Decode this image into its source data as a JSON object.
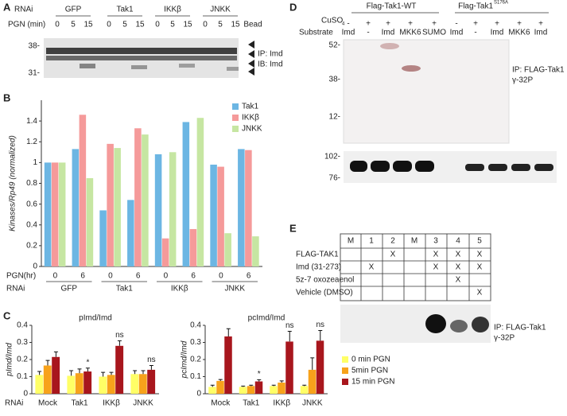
{
  "panel_labels": [
    "A",
    "B",
    "C",
    "D",
    "E"
  ],
  "panel_a": {
    "rnai_label": "RNAi",
    "groups": [
      "GFP",
      "Tak1",
      "IKKβ",
      "JNKK"
    ],
    "pgn_label": "PGN (min)",
    "times": [
      "0",
      "5",
      "15",
      "0",
      "5",
      "15",
      "0",
      "5",
      "15",
      "0",
      "5",
      "15"
    ],
    "bead": "Bead",
    "markers": [
      "38-",
      "31-"
    ],
    "ip": "IP: Imd",
    "ib": "IB: Imd"
  },
  "panel_d": {
    "groups": [
      "Flag-Tak1-WT",
      "Flag-Tak1"
    ],
    "mutation": "S176A",
    "cuso4_label": "CuSO",
    "cuso4_sub": "4",
    "cuso4": [
      "-",
      "+",
      "+",
      "+",
      "+",
      "-",
      "+",
      "+",
      "+",
      "+"
    ],
    "substrate_label": "Substrate",
    "substrates": [
      "Imd",
      "-",
      "Imd",
      "MKK6",
      "SUMO",
      "Imd",
      "-",
      "Imd",
      "MKK6",
      "Imd"
    ],
    "markers_top": [
      "52-",
      "38-",
      "12-"
    ],
    "markers_bottom": [
      "102-",
      "76-"
    ],
    "ip": "IP: FLAG-Tak1",
    "label": "γ-32P"
  },
  "panel_e": {
    "columns": [
      "M",
      "1",
      "2",
      "M",
      "3",
      "4",
      "5"
    ],
    "rows": [
      {
        "label": "FLAG-TAK1",
        "cells": [
          null,
          null,
          "X",
          null,
          "X",
          "X",
          "X"
        ]
      },
      {
        "label": "Imd (31-273)",
        "cells": [
          null,
          "X",
          null,
          null,
          "X",
          "X",
          "X"
        ]
      },
      {
        "label": "5z-7 oxozeaenol",
        "cells": [
          null,
          null,
          null,
          null,
          null,
          "X",
          null
        ]
      },
      {
        "label": "Vehicle (DMSO)",
        "cells": [
          null,
          null,
          null,
          null,
          null,
          null,
          "X"
        ]
      }
    ],
    "ip": "IP: FLAG-Tak1",
    "label": "γ-32P"
  },
  "chart_data": [
    {
      "type": "bar",
      "ylabel": "Kinases/Rp49 (normalized)",
      "x_label": "PGN(hr)",
      "group_label": "RNAi",
      "categories": [
        "0",
        "6",
        "0",
        "6",
        "0",
        "6",
        "0",
        "6"
      ],
      "groups": [
        "GFP",
        "Tak1",
        "IKKβ",
        "JNKK"
      ],
      "series": [
        {
          "name": "Tak1",
          "color": "#6cb6e3",
          "values": [
            1.0,
            1.13,
            0.54,
            0.64,
            1.08,
            1.39,
            0.98,
            1.13
          ]
        },
        {
          "name": "IKKβ",
          "color": "#f59a9a",
          "values": [
            1.0,
            1.46,
            1.18,
            1.33,
            0.27,
            0.36,
            0.96,
            1.12
          ]
        },
        {
          "name": "JNKK",
          "color": "#c6e6a2",
          "values": [
            1.0,
            0.85,
            1.14,
            1.27,
            1.1,
            1.43,
            0.32,
            0.29
          ]
        }
      ],
      "ylim": [
        0,
        1.6
      ],
      "yticks": [
        0,
        0.2,
        0.4,
        0.6,
        0.8,
        1,
        1.2,
        1.4
      ],
      "legend": "top-right"
    },
    {
      "type": "bar",
      "title": "pImd/Imd",
      "ylabel": "pImd/Imd",
      "group_label": "RNAi",
      "categories": [
        "Mock",
        "Tak1",
        "IKKβ",
        "JNKK"
      ],
      "series": [
        {
          "color": "#ffff66",
          "values": [
            0.11,
            0.105,
            0.1,
            0.115
          ],
          "errors": [
            0.02,
            0.03,
            0.025,
            0.02
          ]
        },
        {
          "color": "#f7a21b",
          "values": [
            0.165,
            0.12,
            0.11,
            0.115
          ],
          "errors": [
            0.03,
            0.025,
            0.015,
            0.02
          ]
        },
        {
          "color": "#a8161d",
          "values": [
            0.215,
            0.13,
            0.28,
            0.14
          ],
          "errors": [
            0.03,
            0.02,
            0.03,
            0.025
          ]
        }
      ],
      "significance": [
        null,
        "*",
        "ns",
        "ns"
      ],
      "ylim": [
        0,
        0.4
      ],
      "yticks": [
        0,
        0.1,
        0.2,
        0.3,
        0.4
      ]
    },
    {
      "type": "bar",
      "title": "pcImd/Imd",
      "ylabel": "pcImd/Imd",
      "categories": [
        "Mock",
        "Tak1",
        "IKKβ",
        "JNKK"
      ],
      "series": [
        {
          "name": "0 min PGN",
          "color": "#ffff66",
          "values": [
            0.04,
            0.04,
            0.045,
            0.045
          ],
          "errors": [
            0.01,
            0.005,
            0.005,
            0.005
          ]
        },
        {
          "name": "5min PGN",
          "color": "#f7a21b",
          "values": [
            0.075,
            0.045,
            0.065,
            0.14
          ],
          "errors": [
            0.008,
            0.005,
            0.01,
            0.07
          ]
        },
        {
          "name": "15 min PGN",
          "color": "#a8161d",
          "values": [
            0.335,
            0.072,
            0.305,
            0.31
          ],
          "errors": [
            0.045,
            0.01,
            0.06,
            0.06
          ]
        }
      ],
      "significance": [
        null,
        "*",
        "ns",
        "ns"
      ],
      "ylim": [
        0,
        0.4
      ],
      "yticks": [
        0,
        0.1,
        0.2,
        0.3,
        0.4
      ],
      "legend": "right"
    }
  ]
}
